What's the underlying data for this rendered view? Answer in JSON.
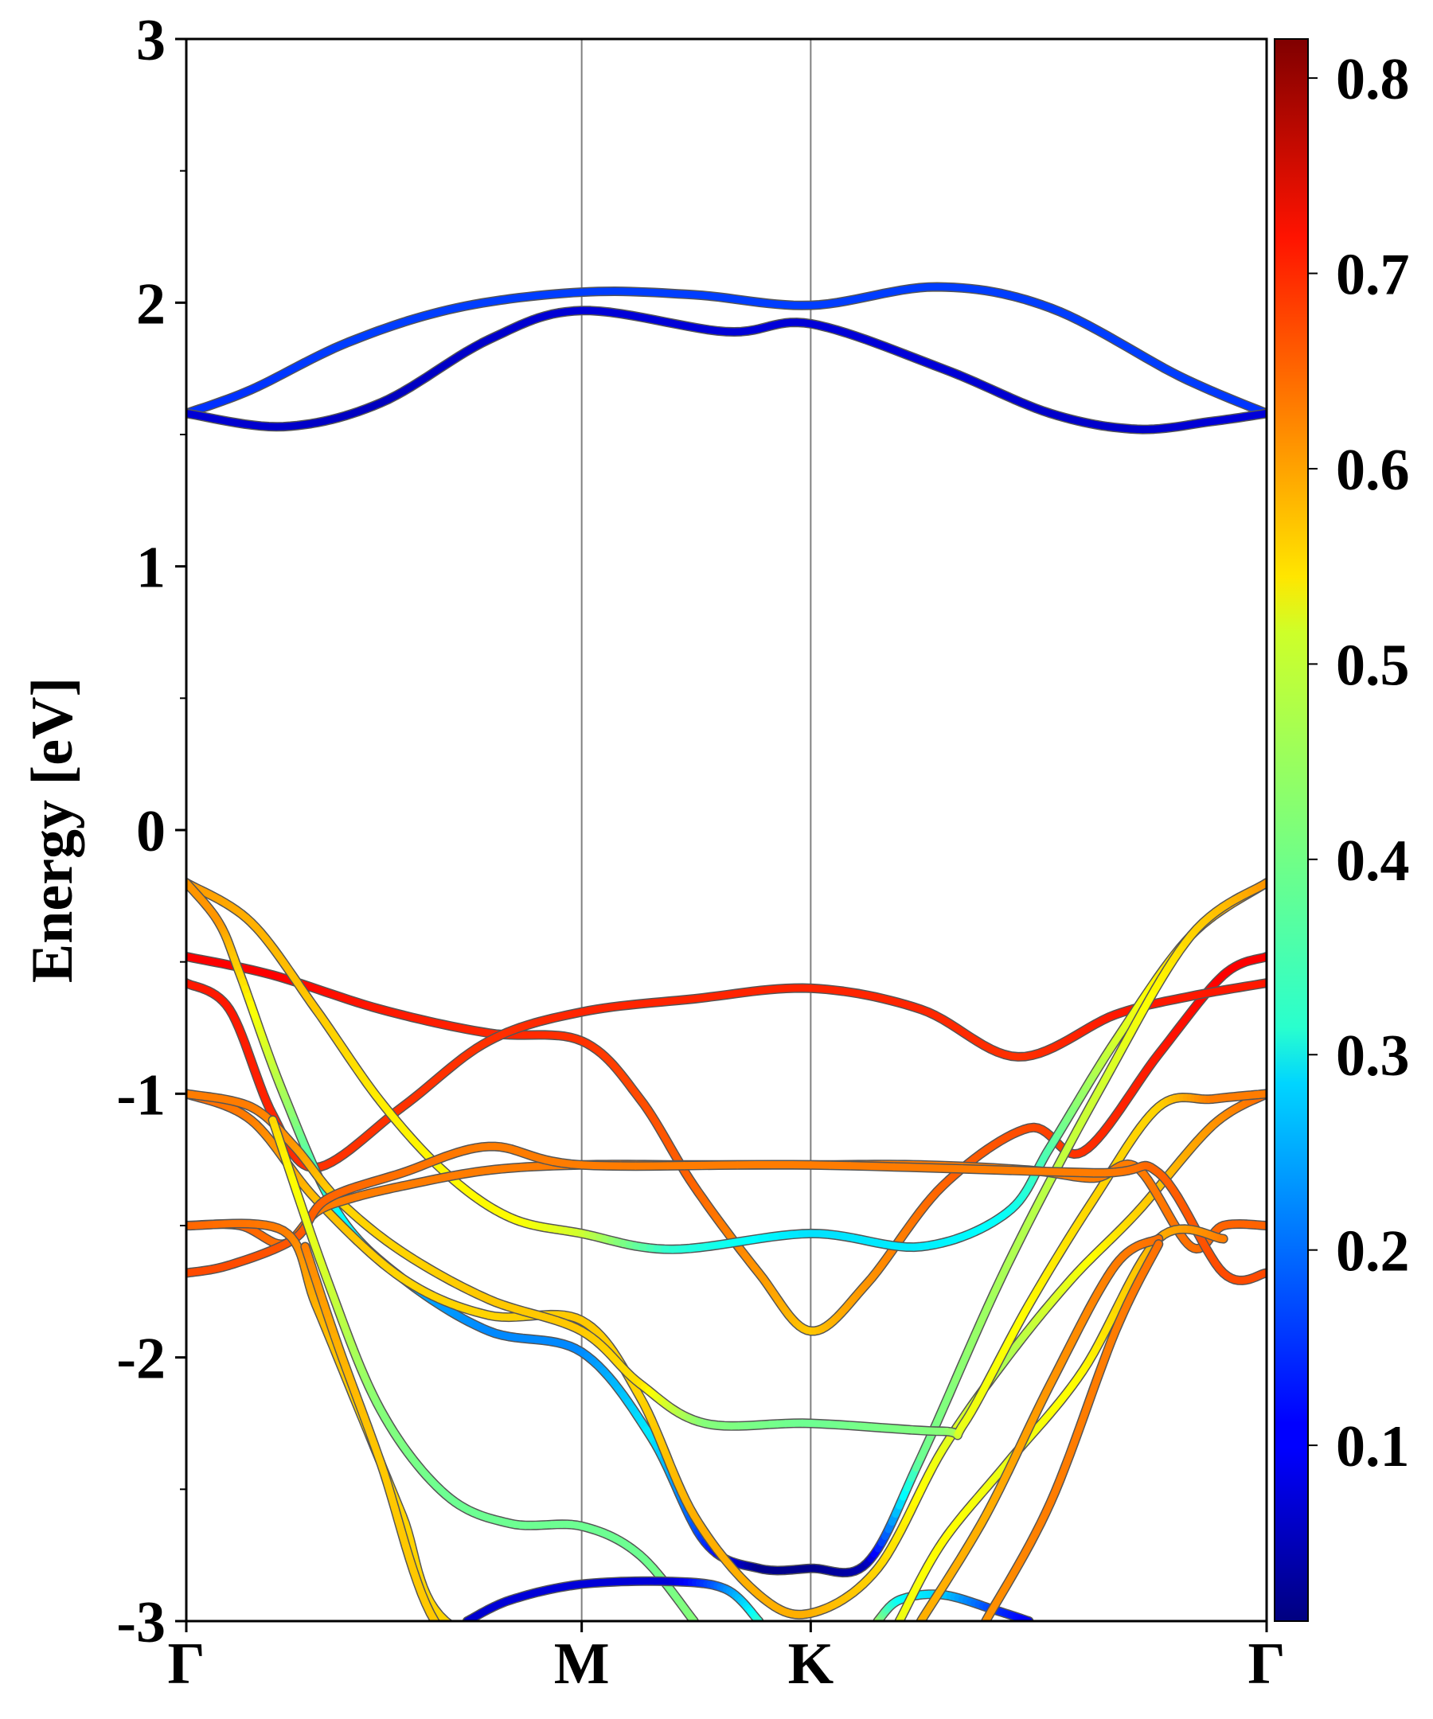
{
  "chart_data": {
    "type": "line",
    "title": "",
    "ylabel": "Energy [eV]",
    "xlabel": "",
    "ylim": [
      -3,
      3
    ],
    "yticks": [
      -3,
      -2,
      -1,
      0,
      1,
      2,
      3
    ],
    "ytick_labels": [
      "-3",
      "-2",
      "-1",
      "0",
      "1",
      "2",
      "3"
    ],
    "k_path": [
      {
        "label": "Γ",
        "k": 0.0
      },
      {
        "label": "M",
        "k": 0.366
      },
      {
        "label": "K",
        "k": 0.578
      },
      {
        "label": "Γ",
        "k": 1.0
      }
    ],
    "grid": "vertical lines at M and K",
    "colorbar": {
      "colormap": "jet",
      "range": [
        0.01,
        0.82
      ],
      "ticks": [
        0.1,
        0.2,
        0.3,
        0.4,
        0.5,
        0.6,
        0.7,
        0.8
      ],
      "tick_labels": [
        "0.1",
        "0.2",
        "0.3",
        "0.4",
        "0.5",
        "0.6",
        "0.7",
        "0.8"
      ],
      "position": "right"
    },
    "series": [
      {
        "points": [
          [
            0,
            1.58,
            0.15
          ],
          [
            0.06,
            1.67,
            0.15
          ],
          [
            0.15,
            1.85,
            0.16
          ],
          [
            0.25,
            1.98,
            0.16
          ],
          [
            0.366,
            2.04,
            0.16
          ],
          [
            0.47,
            2.03,
            0.16
          ],
          [
            0.578,
            1.99,
            0.16
          ],
          [
            0.695,
            2.06,
            0.16
          ],
          [
            0.8,
            1.98,
            0.16
          ],
          [
            0.92,
            1.72,
            0.16
          ],
          [
            1.0,
            1.58,
            0.15
          ]
        ]
      },
      {
        "points": [
          [
            0,
            1.58,
            0.08
          ],
          [
            0.09,
            1.53,
            0.07
          ],
          [
            0.18,
            1.62,
            0.06
          ],
          [
            0.28,
            1.86,
            0.07
          ],
          [
            0.366,
            1.97,
            0.08
          ],
          [
            0.5,
            1.89,
            0.08
          ],
          [
            0.578,
            1.92,
            0.08
          ],
          [
            0.7,
            1.75,
            0.08
          ],
          [
            0.8,
            1.58,
            0.07
          ],
          [
            0.88,
            1.52,
            0.07
          ],
          [
            0.95,
            1.55,
            0.08
          ],
          [
            1.0,
            1.58,
            0.08
          ]
        ]
      },
      {
        "points": [
          [
            0,
            -0.48,
            0.72
          ],
          [
            0.08,
            -0.55,
            0.72
          ],
          [
            0.18,
            -0.68,
            0.7
          ],
          [
            0.28,
            -0.77,
            0.69
          ],
          [
            0.366,
            -0.8,
            0.68
          ],
          [
            0.42,
            -1.02,
            0.66
          ],
          [
            0.47,
            -1.35,
            0.64
          ],
          [
            0.53,
            -1.68,
            0.6
          ],
          [
            0.578,
            -1.9,
            0.56
          ],
          [
            0.63,
            -1.72,
            0.6
          ],
          [
            0.7,
            -1.35,
            0.64
          ],
          [
            0.78,
            -1.13,
            0.66
          ],
          [
            0.83,
            -1.22,
            0.68
          ],
          [
            0.9,
            -0.85,
            0.7
          ],
          [
            0.96,
            -0.55,
            0.72
          ],
          [
            1.0,
            -0.48,
            0.72
          ]
        ]
      },
      {
        "points": [
          [
            0,
            -0.58,
            0.7
          ],
          [
            0.04,
            -0.68,
            0.7
          ],
          [
            0.08,
            -1.08,
            0.69
          ],
          [
            0.12,
            -1.28,
            0.68
          ],
          [
            0.2,
            -1.05,
            0.68
          ],
          [
            0.28,
            -0.8,
            0.68
          ],
          [
            0.366,
            -0.69,
            0.69
          ],
          [
            0.47,
            -0.64,
            0.69
          ],
          [
            0.578,
            -0.6,
            0.69
          ],
          [
            0.68,
            -0.68,
            0.69
          ],
          [
            0.77,
            -0.86,
            0.68
          ],
          [
            0.86,
            -0.7,
            0.7
          ],
          [
            0.93,
            -0.63,
            0.7
          ],
          [
            1.0,
            -0.58,
            0.7
          ]
        ]
      },
      {
        "points": [
          [
            0,
            -0.2,
            0.6
          ],
          [
            0.06,
            -0.35,
            0.58
          ],
          [
            0.12,
            -0.68,
            0.56
          ],
          [
            0.18,
            -1.03,
            0.53
          ],
          [
            0.24,
            -1.3,
            0.52
          ],
          [
            0.3,
            -1.47,
            0.52
          ],
          [
            0.366,
            -1.53,
            0.48
          ],
          [
            0.45,
            -1.59,
            0.35
          ],
          [
            0.578,
            -1.53,
            0.29
          ],
          [
            0.68,
            -1.58,
            0.3
          ],
          [
            0.76,
            -1.45,
            0.32
          ],
          [
            0.8,
            -1.2,
            0.38
          ],
          [
            0.86,
            -0.8,
            0.48
          ],
          [
            0.93,
            -0.4,
            0.56
          ],
          [
            1.0,
            -0.2,
            0.6
          ]
        ]
      },
      {
        "points": [
          [
            0,
            -0.2,
            0.6
          ],
          [
            0.03,
            -0.35,
            0.6
          ],
          [
            0.05,
            -0.55,
            0.55
          ],
          [
            0.09,
            -1.0,
            0.45
          ],
          [
            0.14,
            -1.45,
            0.32
          ],
          [
            0.2,
            -1.7,
            0.25
          ],
          [
            0.28,
            -1.9,
            0.22
          ],
          [
            0.366,
            -1.98,
            0.22
          ],
          [
            0.43,
            -2.3,
            0.3
          ],
          [
            0.48,
            -2.7,
            0.15
          ],
          [
            0.53,
            -2.8,
            0.02
          ],
          [
            0.578,
            -2.8,
            0.02
          ],
          [
            0.63,
            -2.78,
            0.05
          ],
          [
            0.68,
            -2.38,
            0.4
          ],
          [
            0.76,
            -1.65,
            0.45
          ],
          [
            0.85,
            -0.95,
            0.48
          ],
          [
            0.93,
            -0.4,
            0.55
          ],
          [
            1.0,
            -0.2,
            0.6
          ]
        ]
      },
      {
        "points": [
          [
            0,
            -1.0,
            0.64
          ],
          [
            0.06,
            -1.1,
            0.62
          ],
          [
            0.12,
            -1.4,
            0.57
          ],
          [
            0.2,
            -1.7,
            0.55
          ],
          [
            0.28,
            -1.84,
            0.55
          ],
          [
            0.366,
            -1.86,
            0.56
          ],
          [
            0.42,
            -2.15,
            0.55
          ],
          [
            0.47,
            -2.6,
            0.58
          ],
          [
            0.53,
            -2.9,
            0.58
          ],
          [
            0.578,
            -2.97,
            0.58
          ],
          [
            0.64,
            -2.8,
            0.55
          ],
          [
            0.7,
            -2.35,
            0.5
          ],
          [
            0.76,
            -2.0,
            0.45
          ],
          [
            0.82,
            -1.7,
            0.5
          ],
          [
            0.88,
            -1.45,
            0.55
          ],
          [
            0.95,
            -1.12,
            0.6
          ],
          [
            1.0,
            -1.0,
            0.64
          ]
        ]
      },
      {
        "points": [
          [
            0,
            -1.0,
            0.62
          ],
          [
            0.06,
            -1.05,
            0.62
          ],
          [
            0.1,
            -1.2,
            0.6
          ],
          [
            0.14,
            -1.4,
            0.55
          ],
          [
            0.2,
            -1.6,
            0.55
          ],
          [
            0.28,
            -1.78,
            0.56
          ],
          [
            0.366,
            -1.9,
            0.56
          ],
          [
            0.42,
            -2.1,
            0.54
          ],
          [
            0.48,
            -2.25,
            0.42
          ],
          [
            0.578,
            -2.25,
            0.4
          ],
          [
            0.7,
            -2.28,
            0.42
          ],
          [
            0.72,
            -2.25,
            0.5
          ],
          [
            0.78,
            -1.8,
            0.52
          ],
          [
            0.84,
            -1.4,
            0.55
          ],
          [
            0.9,
            -1.05,
            0.55
          ],
          [
            0.95,
            -1.02,
            0.62
          ],
          [
            1.0,
            -1.0,
            0.62
          ]
        ]
      },
      {
        "points": [
          [
            0,
            -1.5,
            0.64
          ],
          [
            0.05,
            -1.5,
            0.64
          ],
          [
            0.09,
            -1.57,
            0.63
          ],
          [
            0.12,
            -1.45,
            0.62
          ],
          [
            0.15,
            -1.4,
            0.62
          ],
          [
            0.2,
            -1.35,
            0.62
          ],
          [
            0.28,
            -1.29,
            0.62
          ],
          [
            0.366,
            -1.27,
            0.62
          ],
          [
            0.47,
            -1.27,
            0.62
          ],
          [
            0.578,
            -1.27,
            0.62
          ],
          [
            0.68,
            -1.27,
            0.62
          ],
          [
            0.78,
            -1.29,
            0.62
          ],
          [
            0.84,
            -1.32,
            0.62
          ],
          [
            0.88,
            -1.28,
            0.62
          ],
          [
            0.93,
            -1.58,
            0.63
          ],
          [
            0.96,
            -1.5,
            0.64
          ],
          [
            1.0,
            -1.5,
            0.64
          ]
        ]
      },
      {
        "points": [
          [
            0,
            -1.68,
            0.66
          ],
          [
            0.04,
            -1.65,
            0.66
          ],
          [
            0.1,
            -1.55,
            0.65
          ],
          [
            0.13,
            -1.4,
            0.64
          ],
          [
            0.2,
            -1.3,
            0.63
          ],
          [
            0.28,
            -1.2,
            0.62
          ],
          [
            0.366,
            -1.27,
            0.62
          ],
          [
            0.578,
            -1.27,
            0.62
          ],
          [
            0.84,
            -1.3,
            0.62
          ],
          [
            0.9,
            -1.3,
            0.64
          ],
          [
            0.96,
            -1.68,
            0.66
          ],
          [
            1.0,
            -1.68,
            0.66
          ]
        ]
      },
      {
        "points": [
          [
            0,
            -1.5,
            0.64
          ],
          [
            0.09,
            -1.52,
            0.62
          ],
          [
            0.12,
            -1.8,
            0.58
          ],
          [
            0.16,
            -2.2,
            0.55
          ],
          [
            0.2,
            -2.6,
            0.55
          ],
          [
            0.24,
            -3.0,
            0.55
          ],
          [
            0.366,
            -3.2,
            0.55
          ]
        ]
      },
      {
        "points": [
          [
            0.11,
            -1.58,
            0.62
          ],
          [
            0.14,
            -1.95,
            0.58
          ],
          [
            0.18,
            -2.4,
            0.56
          ],
          [
            0.23,
            -3.0,
            0.56
          ],
          [
            0.3,
            -3.2,
            0.56
          ]
        ]
      },
      {
        "points": [
          [
            0.08,
            -1.1,
            0.55
          ],
          [
            0.13,
            -1.7,
            0.48
          ],
          [
            0.18,
            -2.2,
            0.42
          ],
          [
            0.24,
            -2.52,
            0.4
          ],
          [
            0.3,
            -2.63,
            0.4
          ],
          [
            0.366,
            -2.64,
            0.4
          ],
          [
            0.42,
            -2.75,
            0.4
          ],
          [
            0.47,
            -3.0,
            0.42
          ]
        ]
      },
      {
        "points": [
          [
            0.26,
            -3.0,
            0.07
          ],
          [
            0.3,
            -2.92,
            0.08
          ],
          [
            0.366,
            -2.86,
            0.08
          ],
          [
            0.45,
            -2.85,
            0.08
          ],
          [
            0.5,
            -2.88,
            0.22
          ],
          [
            0.53,
            -3.0,
            0.35
          ]
        ]
      },
      {
        "points": [
          [
            0.64,
            -3.0,
            0.45
          ],
          [
            0.66,
            -2.92,
            0.32
          ],
          [
            0.7,
            -2.9,
            0.28
          ],
          [
            0.75,
            -2.96,
            0.15
          ],
          [
            0.78,
            -3.0,
            0.1
          ]
        ]
      },
      {
        "points": [
          [
            0.66,
            -3.0,
            0.5
          ],
          [
            0.7,
            -2.7,
            0.52
          ],
          [
            0.76,
            -2.4,
            0.5
          ],
          [
            0.83,
            -2.05,
            0.52
          ],
          [
            0.9,
            -1.55,
            0.58
          ],
          [
            0.96,
            -1.55,
            0.62
          ]
        ]
      },
      {
        "points": [
          [
            0.68,
            -3.0,
            0.58
          ],
          [
            0.74,
            -2.6,
            0.58
          ],
          [
            0.8,
            -2.1,
            0.6
          ],
          [
            0.86,
            -1.65,
            0.62
          ],
          [
            0.9,
            -1.55,
            0.63
          ]
        ]
      },
      {
        "points": [
          [
            0.74,
            -3.0,
            0.6
          ],
          [
            0.8,
            -2.55,
            0.62
          ],
          [
            0.86,
            -1.9,
            0.62
          ],
          [
            0.9,
            -1.57,
            0.63
          ]
        ]
      }
    ]
  }
}
